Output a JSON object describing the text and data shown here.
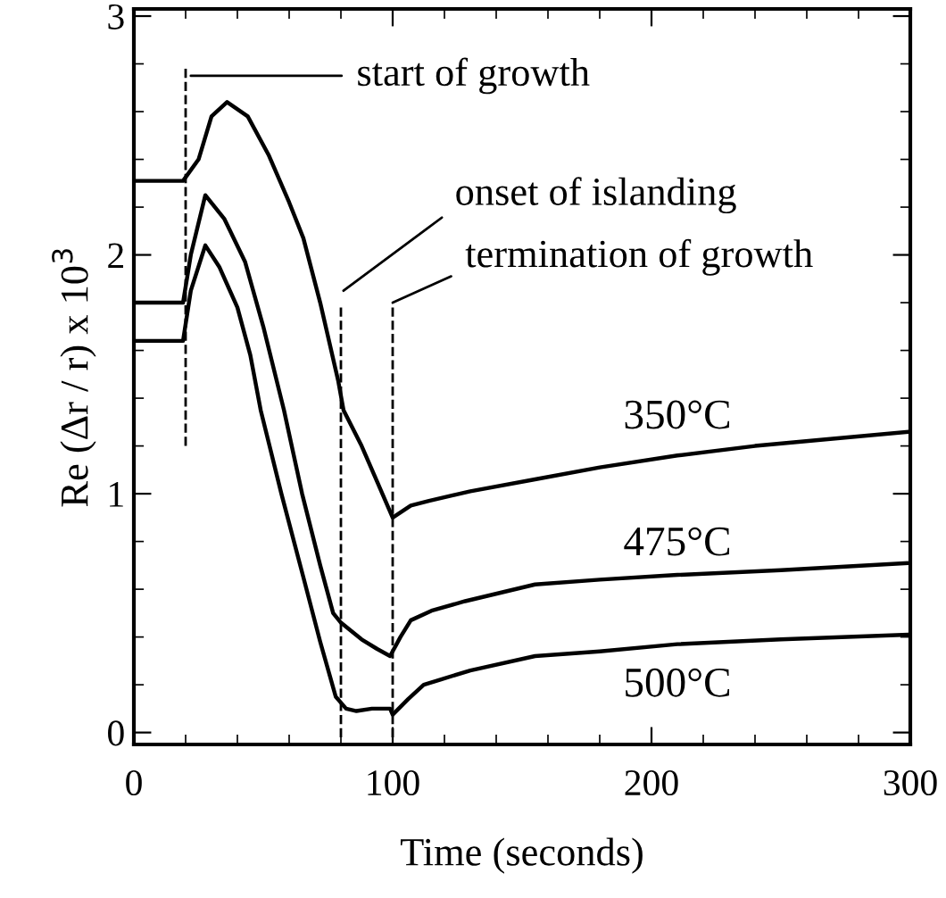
{
  "chart_data": {
    "type": "line",
    "xlabel": "Time (seconds)",
    "ylabel": "Re (Δr / r) x 10$^{3}$",
    "xlim": [
      0,
      300
    ],
    "ylim": [
      -0.05,
      3.03
    ],
    "xticks": [
      0,
      100,
      200,
      300
    ],
    "yticks": [
      0,
      1,
      2,
      3
    ],
    "grid": false,
    "legend": false,
    "marker": "none",
    "line_style": "solid",
    "series": [
      {
        "name": "350°C",
        "color": "#000000",
        "x": [
          0,
          10,
          19,
          25,
          30,
          36,
          44,
          52,
          60,
          65.5,
          72,
          79,
          81,
          88,
          94,
          100,
          107,
          114,
          130,
          155,
          180,
          210,
          240,
          270,
          300
        ],
        "values": [
          2.31,
          2.31,
          2.31,
          2.4,
          2.58,
          2.64,
          2.58,
          2.42,
          2.22,
          2.07,
          1.8,
          1.47,
          1.35,
          1.2,
          1.05,
          0.9,
          0.95,
          0.97,
          1.01,
          1.06,
          1.11,
          1.16,
          1.2,
          1.23,
          1.26
        ]
      },
      {
        "name": "475°C",
        "color": "#000000",
        "x": [
          0,
          10,
          19,
          22,
          27.6,
          35,
          43,
          50,
          58,
          65,
          72,
          77,
          80,
          88,
          94,
          99,
          103,
          107,
          115,
          128,
          155,
          180,
          210,
          250,
          300
        ],
        "values": [
          1.8,
          1.8,
          1.8,
          2.0,
          2.25,
          2.15,
          1.97,
          1.7,
          1.35,
          1.0,
          0.7,
          0.5,
          0.46,
          0.39,
          0.35,
          0.32,
          0.4,
          0.47,
          0.51,
          0.55,
          0.62,
          0.64,
          0.66,
          0.68,
          0.71
        ]
      },
      {
        "name": "500°C",
        "color": "#000000",
        "x": [
          0,
          10,
          19,
          22,
          27.6,
          33,
          40,
          45,
          49,
          57,
          65.5,
          72,
          78,
          82,
          86,
          92,
          99,
          100,
          106,
          112,
          130,
          155,
          180,
          210,
          250,
          300
        ],
        "values": [
          1.64,
          1.64,
          1.64,
          1.85,
          2.04,
          1.95,
          1.78,
          1.58,
          1.35,
          1.0,
          0.65,
          0.38,
          0.15,
          0.1,
          0.09,
          0.1,
          0.1,
          0.075,
          0.14,
          0.2,
          0.26,
          0.32,
          0.34,
          0.37,
          0.39,
          0.41
        ]
      }
    ],
    "ref_lines": [
      {
        "axis": "x",
        "value": 20,
        "color": "#000000",
        "line_style": "dashed"
      },
      {
        "axis": "x",
        "value": 80,
        "color": "#000000",
        "line_style": "dashed"
      },
      {
        "axis": "x",
        "value": 100,
        "color": "#000000",
        "line_style": "dashed"
      }
    ],
    "annotations": [
      "start of growth",
      "onset of islanding",
      {
        "text": "termination of growth",
        "x": 100,
        "y": 1.8
      }
    ]
  }
}
